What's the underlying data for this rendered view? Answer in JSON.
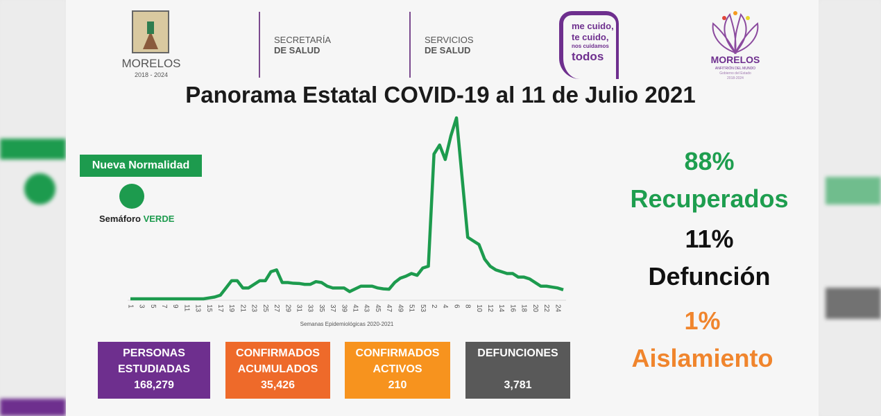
{
  "header": {
    "morelos_logo": {
      "name": "MORELOS",
      "years": "2018 - 2024"
    },
    "secretaria": {
      "line1": "SECRETARÍA",
      "line2": "DE SALUD"
    },
    "servicios": {
      "line1": "SERVICIOS",
      "line2": "DE SALUD"
    },
    "campaign": {
      "line1": "me cuido,",
      "line2": "te cuido,",
      "line3": "nos cuidamos",
      "line4": "todos"
    },
    "state_logo": {
      "name": "MORELOS",
      "tagline": "ANFITRIÓN DEL MUNDO",
      "sub": "Gobierno del Estado",
      "years": "2018-2024"
    }
  },
  "title": "Panorama Estatal COVID-19 al 11 de Julio 2021",
  "status": {
    "badge": "Nueva Normalidad",
    "semaforo_label": "Semáforo",
    "semaforo_value": "VERDE",
    "color": "#1d9b4e"
  },
  "chart_data": {
    "type": "line",
    "title": "",
    "xlabel": "Semanas Epidemiológicas 2020-2021",
    "ylabel": "",
    "grid": false,
    "color": "#1d9b4e",
    "x": [
      "1",
      "2",
      "3",
      "4",
      "5",
      "6",
      "7",
      "8",
      "9",
      "10",
      "11",
      "12",
      "13",
      "14",
      "15",
      "16",
      "17",
      "18",
      "19",
      "20",
      "21",
      "22",
      "23",
      "24",
      "25",
      "26",
      "27",
      "28",
      "29",
      "30",
      "31",
      "32",
      "33",
      "34",
      "35",
      "36",
      "37",
      "38",
      "39",
      "40",
      "41",
      "42",
      "43",
      "44",
      "45",
      "46",
      "47",
      "48",
      "49",
      "50",
      "51",
      "52",
      "53",
      "1",
      "2",
      "3",
      "4",
      "5",
      "6",
      "7",
      "8",
      "9",
      "10",
      "11",
      "12",
      "13",
      "14",
      "15",
      "16",
      "17",
      "18",
      "19",
      "20",
      "21",
      "22",
      "23",
      "24",
      "25"
    ],
    "tick_labels": [
      "1",
      "3",
      "5",
      "7",
      "9",
      "11",
      "13",
      "15",
      "17",
      "19",
      "21",
      "23",
      "25",
      "27",
      "29",
      "31",
      "33",
      "35",
      "37",
      "39",
      "41",
      "43",
      "45",
      "47",
      "49",
      "51",
      "53",
      "2",
      "4",
      "6",
      "8",
      "10",
      "12",
      "14",
      "16",
      "18",
      "20",
      "22",
      "24"
    ],
    "values": [
      0,
      0,
      0,
      0,
      0,
      0,
      0,
      0,
      0,
      0,
      0,
      0,
      0,
      0,
      0.5,
      1,
      2,
      6,
      10,
      10,
      6,
      6,
      8,
      10,
      10,
      15,
      16,
      9,
      9,
      8.6,
      8.5,
      8,
      8,
      9.5,
      9,
      7,
      6,
      6,
      6,
      4,
      5.5,
      7,
      7,
      7,
      6,
      5.5,
      5.3,
      9,
      11.4,
      12.5,
      14,
      13,
      17,
      18,
      80,
      85,
      77,
      90,
      100,
      67,
      34,
      32,
      30,
      22,
      18,
      16,
      15,
      14,
      14,
      12,
      12,
      11,
      9,
      7,
      7,
      6.5,
      6,
      5
    ],
    "ylim": [
      0,
      100
    ]
  },
  "stats": {
    "recuperados": {
      "pct": "88%",
      "label": "Recuperados",
      "color": "#1e9e4f"
    },
    "defuncion": {
      "pct": "11%",
      "label": "Defunción",
      "color": "#111111"
    },
    "aislamiento": {
      "pct": "1%",
      "label": "Aislamiento",
      "color": "#f0852d"
    }
  },
  "boxes": [
    {
      "line1": "PERSONAS",
      "line2": "ESTUDIADAS",
      "value": "168,279",
      "color": "#6e2f8e"
    },
    {
      "line1": "CONFIRMADOS",
      "line2": "ACUMULADOS",
      "value": "35,426",
      "color": "#ee6a2a"
    },
    {
      "line1": "CONFIRMADOS",
      "line2": "ACTIVOS",
      "value": "210",
      "color": "#f7931e"
    },
    {
      "line1": "DEFUNCIONES",
      "line2": "",
      "value": "3,781",
      "color": "#595959"
    }
  ]
}
